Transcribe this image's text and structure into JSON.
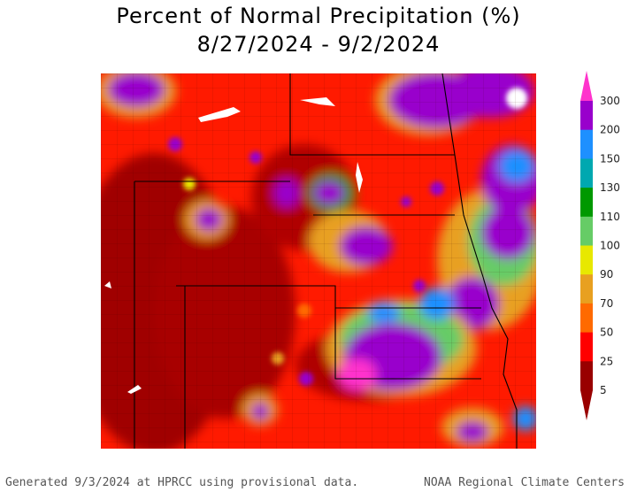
{
  "title": "Percent of Normal Precipitation (%)",
  "date_range": "8/27/2024 - 9/2/2024",
  "legend": {
    "ticks": [
      "300",
      "200",
      "150",
      "130",
      "110",
      "100",
      "90",
      "70",
      "50",
      "25",
      "5"
    ],
    "colors": {
      "300": "#ff33cc",
      "200": "#9900cc",
      "150": "#1e90ff",
      "130": "#00a8b0",
      "110": "#009900",
      "100": "#66cc66",
      "90": "#e8e800",
      "70": "#e8a020",
      "50": "#ff6a00",
      "25": "#ff0000",
      "5": "#990000"
    }
  },
  "footer": {
    "left": "Generated 9/3/2024 at HPRCC using provisional data.",
    "right": "NOAA Regional Climate Centers"
  }
}
